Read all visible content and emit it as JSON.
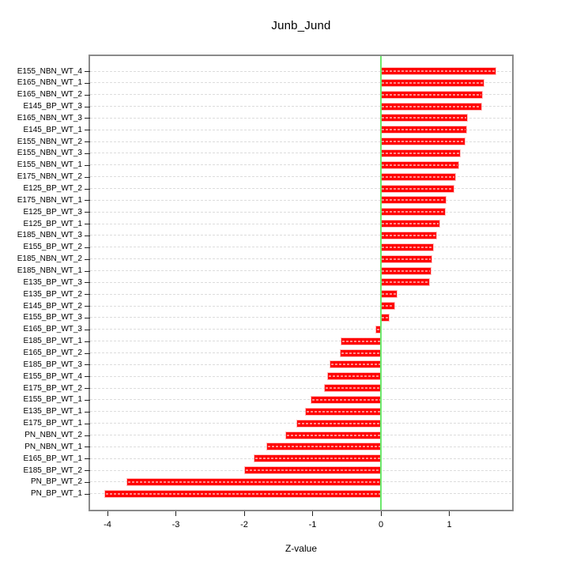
{
  "title": "Junb_Jund",
  "xlabel": "Z-value",
  "chart_data": {
    "type": "bar",
    "orientation": "horizontal",
    "title": "Junb_Jund",
    "xlabel": "Z-value",
    "ylabel": "",
    "grid": true,
    "legend": false,
    "bar_color": "#ff0000",
    "bar_stripe_color": "#ffb3b3",
    "zero_line_color": "#6ce86c",
    "gridline_color": "#dcdcdc",
    "plot_border_color": "#8a8a8a",
    "xlim": [
      -4.25,
      1.92
    ],
    "x_ticks": [
      -4,
      -3,
      -2,
      -1,
      0,
      1
    ],
    "x_tick_labels": [
      "-4",
      "-3",
      "-2",
      "-1",
      "0",
      "1"
    ],
    "categories": [
      "E155_NBN_WT_4",
      "E165_NBN_WT_1",
      "E165_NBN_WT_2",
      "E145_BP_WT_3",
      "E165_NBN_WT_3",
      "E145_BP_WT_1",
      "E155_NBN_WT_2",
      "E155_NBN_WT_3",
      "E155_NBN_WT_1",
      "E175_NBN_WT_2",
      "E125_BP_WT_2",
      "E175_NBN_WT_1",
      "E125_BP_WT_3",
      "E125_BP_WT_1",
      "E185_NBN_WT_3",
      "E155_BP_WT_2",
      "E185_NBN_WT_2",
      "E185_NBN_WT_1",
      "E135_BP_WT_3",
      "E135_BP_WT_2",
      "E145_BP_WT_2",
      "E155_BP_WT_3",
      "E165_BP_WT_3",
      "E185_BP_WT_1",
      "E165_BP_WT_2",
      "E185_BP_WT_3",
      "E155_BP_WT_4",
      "E175_BP_WT_2",
      "E155_BP_WT_1",
      "E135_BP_WT_1",
      "E175_BP_WT_1",
      "PN_NBN_WT_2",
      "PN_NBN_WT_1",
      "E165_BP_WT_1",
      "E185_BP_WT_2",
      "PN_BP_WT_2",
      "PN_BP_WT_1"
    ],
    "values": [
      1.68,
      1.5,
      1.48,
      1.47,
      1.26,
      1.25,
      1.22,
      1.16,
      1.13,
      1.09,
      1.06,
      0.95,
      0.94,
      0.86,
      0.81,
      0.76,
      0.74,
      0.73,
      0.71,
      0.23,
      0.2,
      0.12,
      -0.07,
      -0.58,
      -0.59,
      -0.74,
      -0.77,
      -0.82,
      -1.02,
      -1.1,
      -1.22,
      -1.39,
      -1.66,
      -1.85,
      -1.99,
      -3.71,
      -4.04
    ]
  }
}
